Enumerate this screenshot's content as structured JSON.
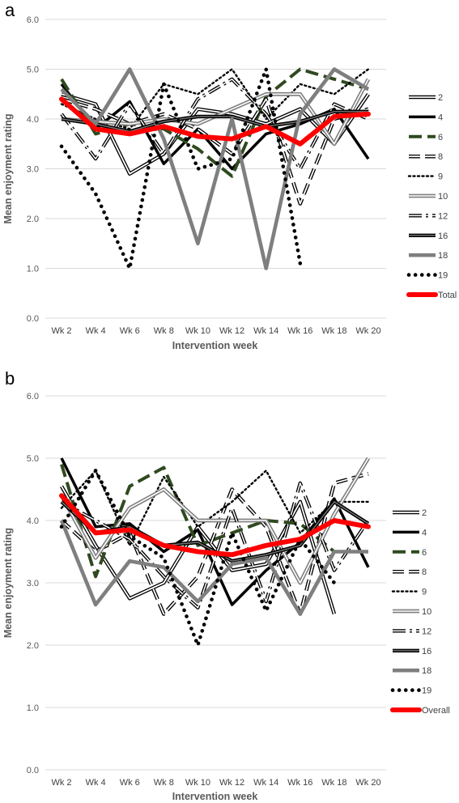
{
  "chart_data": [
    {
      "panel": "a",
      "type": "line",
      "ylabel": "Mean enjoyment rating",
      "xlabel": "Intervention week",
      "ylim": [
        0,
        6
      ],
      "yticks": [
        "0.0",
        "1.0",
        "2.0",
        "3.0",
        "4.0",
        "5.0",
        "6.0"
      ],
      "categories": [
        "Wk 2",
        "Wk 4",
        "Wk 6",
        "Wk 8",
        "Wk 10",
        "Wk 12",
        "Wk 14",
        "Wk 16",
        "Wk 18",
        "Wk 20"
      ],
      "grid": true,
      "legend_position": "right",
      "series": [
        {
          "name": "2",
          "style": "double",
          "values": [
            4.5,
            4.3,
            2.9,
            3.3,
            4.2,
            4.1,
            3.9,
            4.2,
            3.5,
            4.5
          ]
        },
        {
          "name": "4",
          "style": "solid-black",
          "values": [
            4.7,
            3.8,
            4.35,
            3.1,
            3.8,
            3.0,
            3.7,
            3.9,
            4.2,
            3.2
          ]
        },
        {
          "name": "6",
          "style": "dash-green",
          "values": [
            4.8,
            3.7,
            3.9,
            3.8,
            3.4,
            2.85,
            4.45,
            5.0,
            4.8,
            4.6
          ]
        },
        {
          "name": "8",
          "style": "dash-hollow",
          "values": [
            4.4,
            4.2,
            3.9,
            4.1,
            3.8,
            3.3,
            4.4,
            2.3,
            4.0,
            4.2
          ]
        },
        {
          "name": "9",
          "style": "dotted",
          "values": [
            4.3,
            4.0,
            3.8,
            4.7,
            4.5,
            5.0,
            4.0,
            4.7,
            4.5,
            5.0
          ]
        },
        {
          "name": "10",
          "style": "gray-double",
          "values": [
            4.0,
            3.95,
            3.9,
            4.0,
            3.9,
            4.2,
            4.5,
            4.5,
            3.5,
            4.8
          ]
        },
        {
          "name": "12",
          "style": "dash-dot",
          "values": [
            4.1,
            3.2,
            4.3,
            3.3,
            4.4,
            4.8,
            4.1,
            3.0,
            4.3,
            4.0
          ]
        },
        {
          "name": "16",
          "style": "black-double",
          "values": [
            4.0,
            3.9,
            3.75,
            3.95,
            4.05,
            4.05,
            3.85,
            3.95,
            4.15,
            4.15
          ]
        },
        {
          "name": "18",
          "style": "gray-thick",
          "values": [
            4.6,
            3.9,
            5.0,
            3.6,
            1.5,
            4.0,
            1.0,
            4.1,
            5.0,
            4.6
          ]
        },
        {
          "name": "19",
          "style": "big-dots",
          "values": [
            3.45,
            2.5,
            1.0,
            4.7,
            3.0,
            3.2,
            5.0,
            1.1,
            null,
            null
          ]
        },
        {
          "name": "Total",
          "style": "red",
          "values": [
            4.4,
            3.8,
            3.7,
            3.85,
            3.65,
            3.6,
            3.85,
            3.5,
            4.05,
            4.1
          ]
        }
      ]
    },
    {
      "panel": "b",
      "type": "line",
      "ylabel": "Mean enjoyment rating",
      "xlabel": "Intervention week",
      "ylim": [
        0,
        6
      ],
      "yticks": [
        "0.0",
        "1.0",
        "2.0",
        "3.0",
        "4.0",
        "5.0",
        "6.0"
      ],
      "categories": [
        "Wk 2",
        "Wk 4",
        "Wk 6",
        "Wk 8",
        "Wk 10",
        "Wk 12",
        "Wk 14",
        "Wk 16",
        "Wk 18",
        "Wk 20"
      ],
      "grid": true,
      "legend_position": "right",
      "series": [
        {
          "name": "2",
          "style": "double",
          "values": [
            4.55,
            3.6,
            2.75,
            3.0,
            3.9,
            3.2,
            3.3,
            4.3,
            2.5,
            null
          ]
        },
        {
          "name": "4",
          "style": "solid-black",
          "values": [
            5.0,
            3.9,
            3.95,
            3.5,
            3.85,
            2.65,
            3.2,
            3.65,
            4.35,
            3.25
          ]
        },
        {
          "name": "6",
          "style": "dash-green",
          "values": [
            4.9,
            3.1,
            4.55,
            4.85,
            3.6,
            3.8,
            4.0,
            3.95,
            3.5,
            null
          ]
        },
        {
          "name": "8",
          "style": "dash-hollow",
          "values": [
            4.0,
            3.5,
            3.8,
            2.5,
            3.1,
            4.5,
            3.9,
            2.5,
            4.6,
            4.75
          ]
        },
        {
          "name": "9",
          "style": "dotted",
          "values": [
            4.2,
            4.8,
            3.6,
            4.7,
            3.9,
            4.3,
            4.8,
            3.8,
            4.3,
            4.3
          ]
        },
        {
          "name": "10",
          "style": "gray-double",
          "values": [
            4.4,
            3.4,
            4.2,
            4.5,
            4.0,
            4.0,
            4.0,
            3.0,
            4.1,
            5.0
          ]
        },
        {
          "name": "12",
          "style": "dash-dot",
          "values": [
            4.3,
            4.0,
            3.7,
            3.1,
            2.6,
            4.2,
            2.7,
            4.6,
            3.2,
            4.0
          ]
        },
        {
          "name": "16",
          "style": "black-double",
          "values": [
            4.3,
            3.8,
            3.9,
            3.6,
            3.65,
            3.35,
            3.45,
            3.6,
            4.3,
            3.95
          ]
        },
        {
          "name": "18",
          "style": "gray-thick",
          "values": [
            4.0,
            2.65,
            3.35,
            3.25,
            2.7,
            3.3,
            3.4,
            2.5,
            3.5,
            3.5
          ]
        },
        {
          "name": "19",
          "style": "big-dots",
          "values": [
            3.9,
            4.8,
            3.75,
            3.4,
            2.0,
            3.8,
            2.55,
            3.7,
            3.0,
            null
          ]
        },
        {
          "name": "Overall",
          "style": "red",
          "values": [
            4.4,
            3.8,
            3.85,
            3.6,
            3.5,
            3.45,
            3.6,
            3.7,
            4.0,
            3.9
          ]
        }
      ]
    }
  ],
  "panels": {
    "a": {
      "letter": "a"
    },
    "b": {
      "letter": "b"
    }
  },
  "colors": {
    "total_line": "#ff0000",
    "series6": "#2f4a1f",
    "gray": "#7f7f7f",
    "grid": "#d9d9d9",
    "axis_text": "#595959"
  }
}
